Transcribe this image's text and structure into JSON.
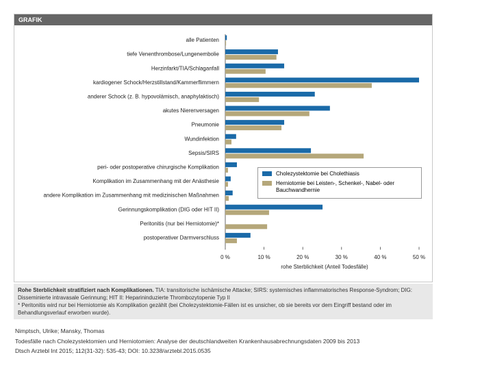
{
  "header": {
    "label": "GRAFIK"
  },
  "chart_data": {
    "type": "hbar",
    "categories": [
      "alle Patienten",
      "tiefe Venenthrombose/Lungenembolie",
      "Herzinfarkt/TIA/Schlaganfall",
      "kardiogener Schock/Herzstillstand/Kammerflimmern",
      "anderer Schock (z. B. hypovolämisch, anaphylaktisch)",
      "akutes Nierenversagen",
      "Pneumonie",
      "Wundinfektion",
      "Sepsis/SIRS",
      "peri- oder postoperative chirurgische Komplikation",
      "Komplikation im Zusammenhang mit der Anästhesie",
      "andere Komplikation im Zusammenhang mit medizinischen Maßnahmen",
      "Gerinnungskomplikation (DIG oder HIT II)",
      "Peritonitis (nur bei Herniotomie)*",
      "postoperativer Darmverschluss"
    ],
    "series": [
      {
        "name": "Cholezystektomie bei Cholethiasis",
        "color": "#1a6aa8",
        "values": [
          0.4,
          13.6,
          15.2,
          50,
          23.1,
          27,
          15.2,
          2.8,
          22.1,
          3,
          1.4,
          1.9,
          25.1,
          null,
          6.5
        ]
      },
      {
        "name": "Herniotomie bei Leisten-, Schenkel-, Nabel- oder Bauchwandhernie",
        "color": "#b5a77a",
        "values": [
          0.2,
          13.2,
          10.4,
          37.8,
          8.7,
          21.7,
          14.5,
          1.6,
          35.7,
          0.7,
          0.7,
          0.9,
          11.3,
          10.8,
          3
        ]
      }
    ],
    "xlim": [
      0,
      50
    ],
    "xticks": [
      {
        "value": 0,
        "label": "0 %"
      },
      {
        "value": 10,
        "label": "10 %"
      },
      {
        "value": 20,
        "label": "20 %"
      },
      {
        "value": 30,
        "label": "30 %"
      },
      {
        "value": 40,
        "label": "40 %"
      },
      {
        "value": 50,
        "label": "50 %"
      }
    ],
    "xlabel": "rohe Sterblichkeit (Anteil Todesfälle)"
  },
  "caption": {
    "bold": "Rohe Sterblichkeit stratifiziert nach Komplikationen.",
    "text": " TIA: transitorische ischämische Attacke; SIRS: systemisches inflammatorisches Response-Syndrom; DIG: Disseminierte intravasale Gerinnung; HIT II: Heparininduzierte Thrombozytopenie Typ II",
    "footnote": "* Peritonitis wird nur bei Herniotomie als Komplikation gezählt (bei Cholezystektomie-Fällen ist es unsicher, ob sie bereits vor dem Eingriff bestand oder im Behandlungsverlauf erworben wurde)."
  },
  "citation": [
    "Nimptsch, Ulrike; Mansky, Thomas",
    "Todesfälle nach Cholezystektomien und Herniotomien: Analyse der deutschlandweiten Krankenhausabrechnungsdaten 2009 bis 2013",
    "Dtsch Arztebl Int 2015; 112(31-32): 535-43; DOI: 10.3238/arztebl.2015.0535"
  ]
}
